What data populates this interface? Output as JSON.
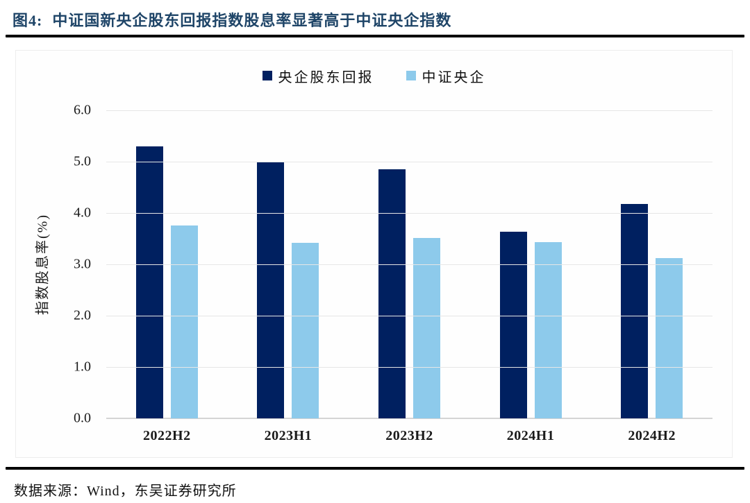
{
  "title": {
    "prefix": "图4:",
    "text": "中证国新央企股东回报指数股息率显著高于中证央企指数"
  },
  "footer": {
    "source": "数据来源：Wind，东吴证券研究所"
  },
  "colors": {
    "title_navy": "#1F4568",
    "bar_navy": "#002060",
    "bar_light_blue": "#8DCAEB",
    "gridline": "#E6E6E6",
    "axis_line": "#D4D4D4",
    "rule_black": "#000000"
  },
  "chart_data": {
    "type": "bar",
    "categories": [
      "2022H2",
      "2023H1",
      "2023H2",
      "2024H1",
      "2024H2"
    ],
    "series": [
      {
        "name": "央企股东回报",
        "color": "#002060",
        "values": [
          5.3,
          4.99,
          4.85,
          3.63,
          4.17
        ]
      },
      {
        "name": "中证央企",
        "color": "#8DCAEB",
        "values": [
          3.76,
          3.42,
          3.51,
          3.43,
          3.12
        ]
      }
    ],
    "title": "",
    "xlabel": "",
    "ylabel": "指数股息率(%)",
    "ylim": [
      0,
      6
    ],
    "ytick_labels": [
      "6.0",
      "5.0",
      "4.0",
      "3.0",
      "2.0",
      "1.0",
      "0.0"
    ],
    "ytick_values": [
      6,
      5,
      4,
      3,
      2,
      1,
      0
    ],
    "grid": true,
    "legend_position": "top-center"
  }
}
